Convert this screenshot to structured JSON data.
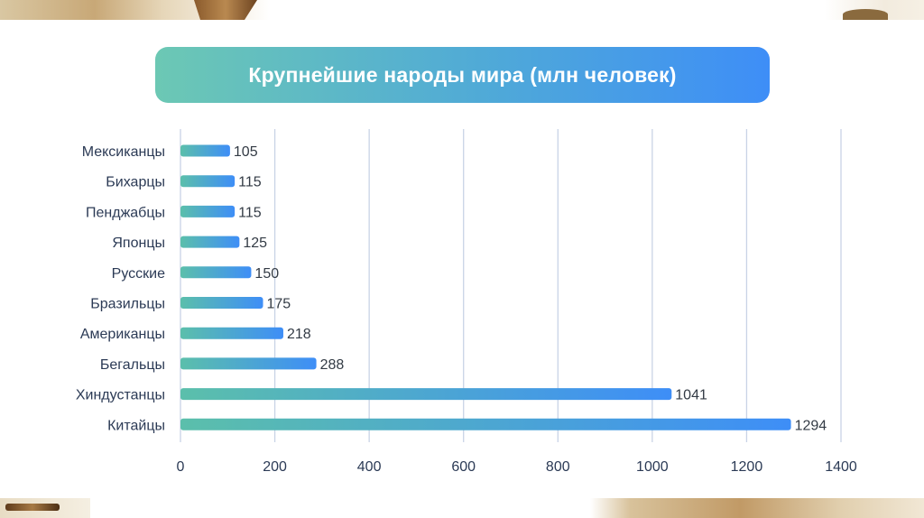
{
  "chart_data": {
    "type": "bar",
    "orientation": "horizontal",
    "title": "Крупнейшие народы мира (млн человек)",
    "categories": [
      "Мексиканцы",
      "Бихарцы",
      "Пенджабцы",
      "Японцы",
      "Русские",
      "Бразильцы",
      "Американцы",
      "Бегальцы",
      "Хиндустанцы",
      "Китайцы"
    ],
    "values": [
      105,
      115,
      115,
      125,
      150,
      175,
      218,
      288,
      1041,
      1294
    ],
    "value_labels": [
      "105",
      "115",
      "115",
      "125",
      "150",
      "175",
      "218",
      "288",
      "1041",
      "1294"
    ],
    "xlim": [
      0,
      1400
    ],
    "xticks": [
      0,
      200,
      400,
      600,
      800,
      1000,
      1200,
      1400
    ],
    "xtick_labels": [
      "0",
      "200",
      "400",
      "600",
      "800",
      "1000",
      "1200",
      "1400"
    ],
    "grid": true,
    "legend": "none",
    "colors": {
      "bar_start": "#5bbfab",
      "bar_end": "#3e8ef7",
      "grid": "#c9d3e6",
      "banner_start": "#6cc8b4",
      "banner_end": "#3e8ef7"
    }
  }
}
